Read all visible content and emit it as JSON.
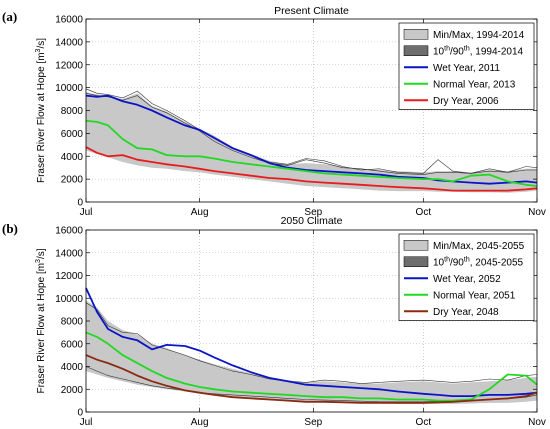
{
  "chart_data": [
    {
      "type": "line",
      "panel_label": "(a)",
      "title": "Present Climate",
      "ylabel": "Fraser River Flow at Hope [m³/s]",
      "ylabel_parts": [
        "Fraser River Flow at Hope [m",
        "3",
        "/s]"
      ],
      "ylim": [
        0,
        16000
      ],
      "yticks": [
        0,
        2000,
        4000,
        6000,
        8000,
        10000,
        12000,
        14000,
        16000
      ],
      "xticks": [
        {
          "label": "Jul",
          "day": 0
        },
        {
          "label": "Aug",
          "day": 31
        },
        {
          "label": "Sep",
          "day": 62
        },
        {
          "label": "Oct",
          "day": 92
        },
        {
          "label": "Nov",
          "day": 123
        }
      ],
      "grid": "dotted",
      "legend_position": "top-right",
      "legend": [
        {
          "kind": "patch",
          "color": "#c8c8c8",
          "label": "Min/Max, 1994-2014"
        },
        {
          "kind": "patch",
          "color": "#6e6e6e",
          "label_pre": "10",
          "label_sup1": "th",
          "label_mid": "/90",
          "label_sup2": "th",
          "label_post": ", 1994-2014"
        },
        {
          "kind": "line",
          "color": "#0a14c8",
          "label": "Wet Year, 2011"
        },
        {
          "kind": "line",
          "color": "#22d822",
          "label": "Normal Year, 2013"
        },
        {
          "kind": "line",
          "color": "#e81c1c",
          "label": "Dry Year, 2006"
        }
      ],
      "band": {
        "days": [
          0,
          3,
          6,
          10,
          14,
          18,
          22,
          27,
          31,
          35,
          40,
          45,
          50,
          55,
          60,
          65,
          70,
          75,
          80,
          85,
          92,
          96,
          100,
          105,
          110,
          115,
          120,
          123
        ],
        "upper": [
          9600,
          9400,
          9400,
          9000,
          9500,
          8400,
          7900,
          7000,
          6400,
          5800,
          4800,
          4200,
          3600,
          3300,
          3400,
          3300,
          3100,
          2900,
          2800,
          2700,
          2600,
          2700,
          2700,
          2600,
          2800,
          2700,
          2900,
          2900
        ],
        "lower": [
          4500,
          4200,
          3900,
          3500,
          3200,
          3000,
          2900,
          2700,
          2600,
          2400,
          2200,
          2000,
          1800,
          1600,
          1400,
          1300,
          1200,
          1100,
          1000,
          950,
          950,
          900,
          900,
          850,
          850,
          800,
          900,
          1000
        ]
      },
      "thin_lines": [
        {
          "days": [
            0,
            3,
            6,
            10,
            14,
            18,
            22,
            27,
            31,
            35,
            40,
            45,
            50,
            55,
            60,
            65,
            70,
            75,
            80,
            85,
            92,
            96,
            100,
            105,
            110,
            115,
            120,
            123
          ],
          "values": [
            9900,
            9500,
            9400,
            9100,
            9700,
            8600,
            8000,
            7100,
            6300,
            5600,
            4700,
            4100,
            3500,
            3300,
            3800,
            3600,
            3100,
            2800,
            2900,
            2600,
            2500,
            3700,
            2700,
            2500,
            2900,
            2600,
            2800,
            2800
          ]
        },
        {
          "days": [
            0,
            3,
            6,
            10,
            14,
            18,
            22,
            27,
            31,
            35,
            40,
            45,
            50,
            55,
            60,
            65,
            70,
            75,
            80,
            85,
            92,
            96,
            100,
            105,
            110,
            115,
            120,
            123
          ],
          "values": [
            9500,
            9300,
            9200,
            8900,
            9300,
            8300,
            7800,
            6900,
            6200,
            5300,
            4500,
            3900,
            3400,
            3200,
            3700,
            3400,
            3000,
            2900,
            2700,
            2500,
            2400,
            2600,
            2600,
            2500,
            2700,
            2600,
            3100,
            3000
          ]
        }
      ],
      "series": [
        {
          "name": "Wet Year, 2011",
          "color": "#0a14c8",
          "days": [
            0,
            3,
            6,
            10,
            14,
            18,
            22,
            27,
            31,
            35,
            40,
            45,
            50,
            55,
            60,
            65,
            70,
            75,
            80,
            85,
            92,
            96,
            100,
            105,
            110,
            115,
            120,
            123
          ],
          "values": [
            9300,
            9200,
            9300,
            8800,
            8500,
            8000,
            7400,
            6700,
            6300,
            5600,
            4700,
            4100,
            3400,
            3000,
            2800,
            2700,
            2600,
            2500,
            2400,
            2200,
            2100,
            1900,
            1800,
            1700,
            1600,
            1700,
            1800,
            1700
          ]
        },
        {
          "name": "Normal Year, 2013",
          "color": "#22d822",
          "days": [
            0,
            3,
            6,
            10,
            14,
            18,
            22,
            27,
            31,
            35,
            40,
            45,
            50,
            55,
            60,
            65,
            70,
            75,
            80,
            85,
            92,
            96,
            100,
            105,
            110,
            115,
            120,
            123
          ],
          "values": [
            7100,
            7000,
            6700,
            5500,
            4700,
            4600,
            4100,
            4000,
            4000,
            3800,
            3500,
            3300,
            3100,
            2900,
            2700,
            2500,
            2400,
            2300,
            2200,
            2100,
            2000,
            2000,
            1800,
            2300,
            2400,
            1800,
            1500,
            1400
          ]
        },
        {
          "name": "Dry Year, 2006",
          "color": "#e81c1c",
          "days": [
            0,
            3,
            6,
            10,
            14,
            18,
            22,
            27,
            31,
            35,
            40,
            45,
            50,
            55,
            60,
            65,
            70,
            75,
            80,
            85,
            92,
            96,
            100,
            105,
            110,
            115,
            120,
            123
          ],
          "values": [
            4800,
            4300,
            4000,
            4100,
            3700,
            3500,
            3300,
            3100,
            2900,
            2700,
            2500,
            2300,
            2100,
            2000,
            1800,
            1700,
            1600,
            1500,
            1400,
            1300,
            1200,
            1100,
            1000,
            1000,
            1000,
            1000,
            1100,
            1200
          ]
        }
      ]
    },
    {
      "type": "line",
      "panel_label": "(b)",
      "title": "2050 Climate",
      "ylabel": "Fraser River Flow at Hope [m³/s]",
      "ylabel_parts": [
        "Fraser River Flow at Hope [m",
        "3",
        "/s]"
      ],
      "ylim": [
        0,
        16000
      ],
      "yticks": [
        0,
        2000,
        4000,
        6000,
        8000,
        10000,
        12000,
        14000,
        16000
      ],
      "xticks": [
        {
          "label": "Jul",
          "day": 0
        },
        {
          "label": "Aug",
          "day": 31
        },
        {
          "label": "Sep",
          "day": 62
        },
        {
          "label": "Oct",
          "day": 92
        },
        {
          "label": "Nov",
          "day": 123
        }
      ],
      "grid": "dotted",
      "legend_position": "top-right",
      "legend": [
        {
          "kind": "patch",
          "color": "#c8c8c8",
          "label": "Min/Max, 2045-2055"
        },
        {
          "kind": "patch",
          "color": "#6e6e6e",
          "label_pre": "10",
          "label_sup1": "th",
          "label_mid": "/90",
          "label_sup2": "th",
          "label_post": ", 2045-2055"
        },
        {
          "kind": "line",
          "color": "#0a14c8",
          "label": "Wet Year, 2052"
        },
        {
          "kind": "line",
          "color": "#22d822",
          "label": "Normal Year, 2051"
        },
        {
          "kind": "line",
          "color": "#8b2a10",
          "label": "Dry Year, 2048"
        }
      ],
      "band": {
        "days": [
          0,
          3,
          6,
          10,
          14,
          18,
          22,
          27,
          31,
          35,
          40,
          45,
          50,
          55,
          60,
          65,
          70,
          75,
          80,
          85,
          92,
          96,
          100,
          105,
          110,
          115,
          120,
          123
        ],
        "upper": [
          9800,
          9200,
          8000,
          7200,
          6800,
          6000,
          5600,
          5000,
          4600,
          4200,
          3800,
          3400,
          3000,
          2800,
          2600,
          2700,
          2600,
          2500,
          2500,
          2600,
          2700,
          2600,
          2500,
          2600,
          2700,
          2800,
          3000,
          3100
        ],
        "lower": [
          3600,
          3300,
          3000,
          2700,
          2400,
          2200,
          2000,
          1800,
          1600,
          1500,
          1300,
          1200,
          1100,
          1000,
          900,
          850,
          800,
          800,
          750,
          700,
          700,
          700,
          700,
          750,
          800,
          800,
          900,
          1000
        ]
      },
      "thin_lines": [
        {
          "days": [
            0,
            3,
            6,
            10,
            14,
            18,
            22,
            27,
            31,
            35,
            40,
            45,
            50,
            55,
            60,
            65,
            70,
            75,
            80,
            85,
            92,
            96,
            100,
            105,
            110,
            115,
            120,
            123
          ],
          "values": [
            9600,
            9000,
            7600,
            7000,
            6900,
            5900,
            5500,
            5000,
            4500,
            4100,
            3600,
            3300,
            2900,
            2700,
            2600,
            2800,
            2700,
            2500,
            2600,
            2700,
            2800,
            2700,
            2600,
            2700,
            2900,
            2800,
            3200,
            3300
          ]
        },
        {
          "days": [
            0,
            3,
            6,
            10,
            14,
            18,
            22,
            27,
            31,
            35,
            40,
            45,
            50,
            55,
            60,
            65,
            70,
            75,
            80,
            85,
            92,
            96,
            100,
            105,
            110,
            115,
            120,
            123
          ],
          "values": [
            4000,
            3600,
            3200,
            2900,
            2600,
            2300,
            2100,
            1900,
            1700,
            1600,
            1500,
            1400,
            1300,
            1200,
            1100,
            1050,
            1000,
            950,
            900,
            900,
            900,
            950,
            1000,
            1050,
            1100,
            1150,
            1300,
            1500
          ]
        }
      ],
      "series": [
        {
          "name": "Wet Year, 2052",
          "color": "#0a14c8",
          "days": [
            0,
            3,
            6,
            10,
            14,
            18,
            22,
            27,
            31,
            35,
            40,
            45,
            50,
            55,
            60,
            65,
            70,
            75,
            80,
            85,
            92,
            96,
            100,
            105,
            110,
            115,
            120,
            123
          ],
          "values": [
            10900,
            8800,
            7300,
            6600,
            6300,
            5500,
            5900,
            5800,
            5400,
            4800,
            4100,
            3500,
            3000,
            2700,
            2400,
            2300,
            2200,
            2100,
            2000,
            1800,
            1600,
            1500,
            1400,
            1400,
            1500,
            1500,
            1600,
            1700
          ]
        },
        {
          "name": "Normal Year, 2051",
          "color": "#22d822",
          "days": [
            0,
            3,
            6,
            10,
            14,
            18,
            22,
            27,
            31,
            35,
            40,
            45,
            50,
            55,
            60,
            65,
            70,
            75,
            80,
            85,
            92,
            96,
            100,
            105,
            110,
            115,
            120,
            123
          ],
          "values": [
            7000,
            6600,
            6000,
            5000,
            4300,
            3600,
            3000,
            2500,
            2200,
            2000,
            1800,
            1700,
            1600,
            1500,
            1400,
            1300,
            1300,
            1200,
            1200,
            1100,
            1100,
            1000,
            1000,
            1100,
            2000,
            3300,
            3200,
            2400
          ]
        },
        {
          "name": "Dry Year, 2048",
          "color": "#8b2a10",
          "days": [
            0,
            3,
            6,
            10,
            14,
            18,
            22,
            27,
            31,
            35,
            40,
            45,
            50,
            55,
            60,
            65,
            70,
            75,
            80,
            85,
            92,
            96,
            100,
            105,
            110,
            115,
            120,
            123
          ],
          "values": [
            5000,
            4600,
            4300,
            3800,
            3200,
            2700,
            2300,
            1900,
            1700,
            1500,
            1300,
            1200,
            1100,
            1000,
            900,
            900,
            850,
            800,
            800,
            800,
            800,
            850,
            900,
            1000,
            1100,
            1200,
            1400,
            1700
          ]
        }
      ]
    }
  ]
}
